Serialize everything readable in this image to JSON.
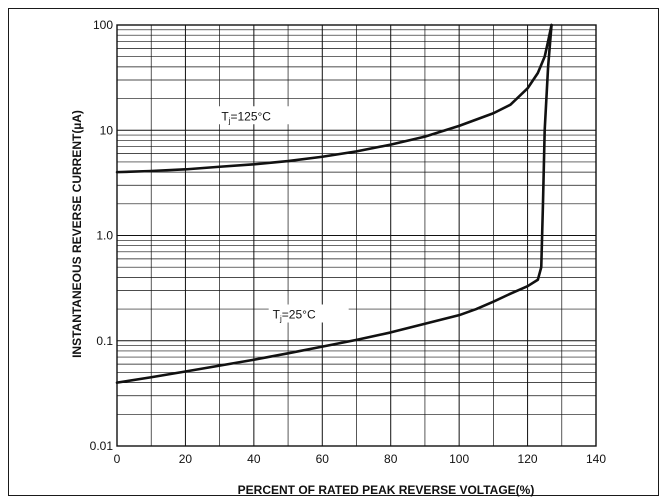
{
  "chart_data": {
    "type": "line",
    "xlabel": "PERCENT OF RATED PEAK REVERSE VOLTAGE(%)",
    "ylabel": "INSTANTANEOUS REVERSE CURRENT(µA)",
    "xlim": [
      0,
      140
    ],
    "ylim": [
      0.01,
      100
    ],
    "yscale": "log",
    "grid": true,
    "x_ticks": [
      "0",
      "20",
      "40",
      "60",
      "80",
      "100",
      "120",
      "140"
    ],
    "y_ticks": [
      "0.01",
      "0.1",
      "1.0",
      "10",
      "100"
    ],
    "series": [
      {
        "name": "Tj=125°C",
        "label_main": "T",
        "label_sub": "j",
        "label_rest": "=125°C",
        "x": [
          0,
          10,
          20,
          30,
          40,
          50,
          60,
          70,
          80,
          90,
          100,
          110,
          115,
          120,
          123,
          125,
          126,
          127
        ],
        "y": [
          4.0,
          4.1,
          4.25,
          4.5,
          4.75,
          5.1,
          5.6,
          6.3,
          7.3,
          8.7,
          11.0,
          14.5,
          17.5,
          25,
          35,
          50,
          70,
          100
        ]
      },
      {
        "name": "Tj=25°C",
        "label_main": "T",
        "label_sub": "j",
        "label_rest": "=25°C",
        "x": [
          0,
          10,
          20,
          30,
          40,
          50,
          60,
          70,
          80,
          90,
          100,
          105,
          110,
          115,
          120,
          123,
          124,
          124.5,
          125,
          126,
          127
        ],
        "y": [
          0.04,
          0.045,
          0.051,
          0.058,
          0.066,
          0.076,
          0.088,
          0.102,
          0.12,
          0.145,
          0.175,
          0.2,
          0.235,
          0.28,
          0.33,
          0.38,
          0.5,
          2.0,
          10,
          40,
          100
        ]
      }
    ]
  }
}
